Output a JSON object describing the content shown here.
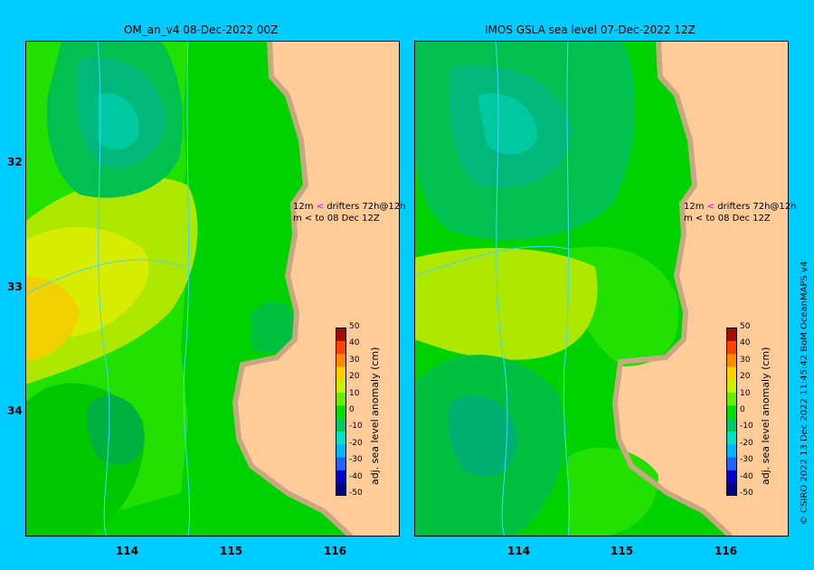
{
  "panels": [
    {
      "title": "OM_an_v4  08-Dec-2022 00Z"
    },
    {
      "title": "IMOS GSLA sea level  07-Dec-2022 12Z"
    }
  ],
  "y_ticks": [
    "32",
    "33",
    "34"
  ],
  "x_ticks": [
    "114",
    "115",
    "116"
  ],
  "drifters": {
    "label1_prefix": "12m",
    "label1": "drifters 72h@12h",
    "label2_prefix": "m",
    "label2": "to 08 Dec 12Z"
  },
  "colorbar": {
    "label": "adj. sea level anomaly (cm)",
    "ticks": [
      "50",
      "40",
      "30",
      "20",
      "10",
      "0",
      "-10",
      "-20",
      "-30",
      "-40",
      "-50"
    ],
    "colors": [
      "#000080",
      "#0000cd",
      "#1e64ff",
      "#00b4ff",
      "#00e0c8",
      "#00c864",
      "#00e000",
      "#64f000",
      "#c8f000",
      "#ffd000",
      "#ff8c00",
      "#ff4000",
      "#a01000"
    ]
  },
  "copyright": "© CSIRO 2022   13 Dec 2022 11:45:42 BoM OceanMAPS v4",
  "colors": {
    "background": "#00ccff",
    "land": "#ffcc99",
    "coast": "#c8a882"
  }
}
